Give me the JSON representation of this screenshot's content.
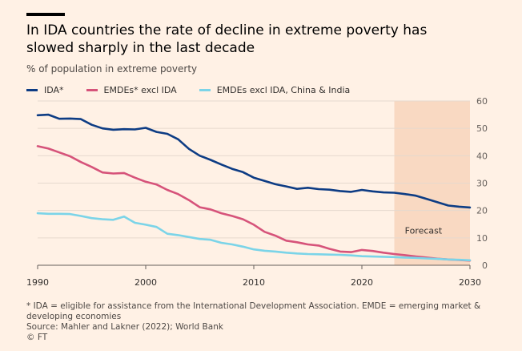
{
  "header": {
    "title": "In IDA countries the rate of decline in extreme poverty has slowed sharply in the last decade",
    "subtitle": "% of population in extreme poverty"
  },
  "legend": [
    {
      "label": "IDA*",
      "color": "#0d3c84"
    },
    {
      "label": "EMDEs* excl IDA",
      "color": "#d6537a"
    },
    {
      "label": "EMDEs excl IDA, China & India",
      "color": "#7bd4e8"
    }
  ],
  "footnote": {
    "line1": "* IDA = eligible for assistance from the International Development Association. EMDE = emerging market &",
    "line2": "developing economies",
    "source": "Source: Mahler and Lakner (2022); World Bank",
    "credit": "© FT"
  },
  "chart_data": {
    "type": "line",
    "xlim": [
      1990,
      2030
    ],
    "ylim": [
      0,
      60
    ],
    "x_ticks": [
      1990,
      2000,
      2010,
      2020,
      2030
    ],
    "y_ticks": [
      0,
      10,
      20,
      30,
      40,
      50,
      60
    ],
    "grid": true,
    "y_axis_side": "right",
    "forecast_region": {
      "start": 2023,
      "end": 2030,
      "label": "Forecast"
    },
    "x": [
      1990,
      1991,
      1992,
      1993,
      1994,
      1995,
      1996,
      1997,
      1998,
      1999,
      2000,
      2001,
      2002,
      2003,
      2004,
      2005,
      2006,
      2007,
      2008,
      2009,
      2010,
      2011,
      2012,
      2013,
      2014,
      2015,
      2016,
      2017,
      2018,
      2019,
      2020,
      2021,
      2022,
      2023,
      2024,
      2025,
      2026,
      2027,
      2028,
      2029,
      2030
    ],
    "series": [
      {
        "name": "IDA*",
        "color": "#0d3c84",
        "values": [
          54.8,
          55.0,
          53.5,
          53.6,
          53.4,
          51.3,
          50.0,
          49.5,
          49.7,
          49.6,
          50.2,
          48.7,
          48.0,
          46.0,
          42.5,
          40.0,
          38.5,
          36.8,
          35.2,
          34.0,
          32.0,
          30.8,
          29.6,
          28.8,
          27.9,
          28.3,
          27.8,
          27.6,
          27.1,
          26.8,
          27.5,
          27.0,
          26.6,
          26.5,
          26.0,
          25.4,
          24.2,
          23.0,
          21.8,
          21.4,
          21.1
        ]
      },
      {
        "name": "EMDEs* excl IDA",
        "color": "#d6537a",
        "values": [
          43.5,
          42.6,
          41.2,
          39.8,
          37.7,
          35.9,
          33.9,
          33.5,
          33.7,
          32.0,
          30.5,
          29.5,
          27.5,
          26.0,
          23.8,
          21.2,
          20.4,
          19.0,
          18.0,
          16.8,
          14.8,
          12.2,
          10.8,
          9.0,
          8.4,
          7.6,
          7.2,
          6.0,
          5.0,
          4.8,
          5.6,
          5.2,
          4.6,
          4.1,
          3.7,
          3.2,
          2.8,
          2.4,
          2.1,
          1.9,
          1.7
        ]
      },
      {
        "name": "EMDEs excl IDA, China & India",
        "color": "#7bd4e8",
        "values": [
          19.0,
          18.8,
          18.8,
          18.7,
          18.0,
          17.2,
          16.8,
          16.6,
          17.8,
          15.5,
          14.8,
          14.0,
          11.5,
          11.0,
          10.3,
          9.6,
          9.3,
          8.2,
          7.6,
          6.8,
          5.8,
          5.3,
          5.0,
          4.6,
          4.3,
          4.1,
          4.0,
          3.9,
          3.8,
          3.6,
          3.3,
          3.2,
          3.1,
          3.0,
          2.8,
          2.7,
          2.5,
          2.3,
          2.1,
          2.0,
          1.8
        ]
      }
    ]
  }
}
